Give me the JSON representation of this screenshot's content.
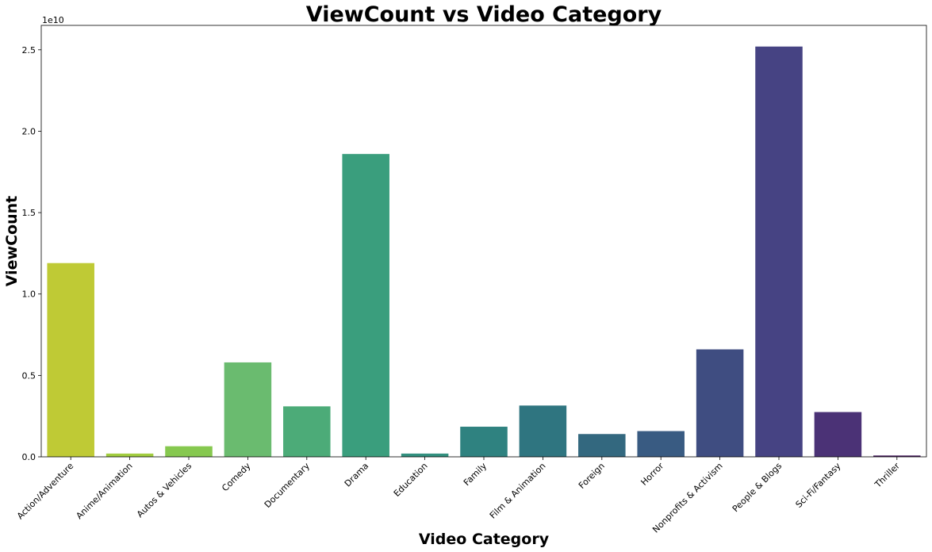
{
  "chart_data": {
    "type": "bar",
    "title": "ViewCount vs Video Category",
    "xlabel": "Video Category",
    "ylabel": "ViewCount",
    "y_offset_label": "1e10",
    "ylim": [
      0,
      2.65
    ],
    "yticks": [
      0.0,
      0.5,
      1.0,
      1.5,
      2.0,
      2.5
    ],
    "ytick_labels": [
      "0.0",
      "0.5",
      "1.0",
      "1.5",
      "2.0",
      "2.5"
    ],
    "categories": [
      "Action/Adventure",
      "Anime/Animation",
      "Autos & Vehicles",
      "Comedy",
      "Documentary",
      "Drama",
      "Education",
      "Family",
      "Film & Animation",
      "Foreign",
      "Horror",
      "Nonprofits & Activism",
      "People & Blogs",
      "Sci-Fi/Fantasy",
      "Thriller"
    ],
    "values": [
      1.19,
      0.02,
      0.065,
      0.58,
      0.31,
      1.86,
      0.02,
      0.185,
      0.315,
      0.14,
      0.158,
      0.66,
      2.52,
      0.275,
      0.008
    ],
    "colors": [
      "#bfca35",
      "#a2cd3f",
      "#86c84f",
      "#6abb6f",
      "#4cab78",
      "#3a9e7d",
      "#32907f",
      "#2f8280",
      "#2f7580",
      "#33687f",
      "#395b82",
      "#3f4d81",
      "#464383",
      "#4b3276",
      "#43175a"
    ],
    "grid": false,
    "legend": "none"
  }
}
